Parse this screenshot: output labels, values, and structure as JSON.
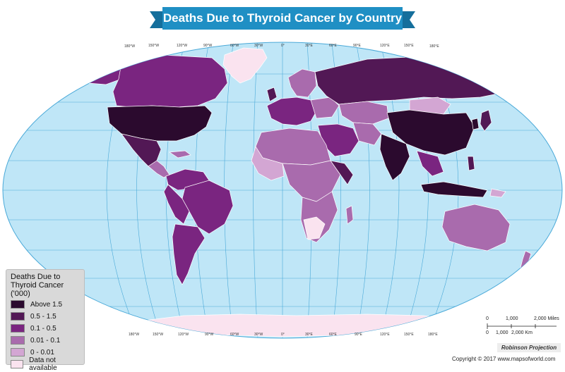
{
  "title": "Deaths Due to Thyroid Cancer by Country",
  "colors": {
    "ocean": "#bfe6f7",
    "graticule": "#4aa9d8",
    "banner": "#1f8fc4",
    "above_1_5": "#2b0a2e",
    "r0_5_1_5": "#521855",
    "r0_1_0_5": "#7a2580",
    "r0_01_0_1": "#a96bad",
    "r0_0_01": "#d3a6d3",
    "not_available": "#fae3ef"
  },
  "legend": {
    "title_line1": "Deaths Due to",
    "title_line2": "Thyroid Cancer ('000)",
    "items": [
      {
        "label": "Above 1.5",
        "color": "#2b0a2e"
      },
      {
        "label": "0.5 - 1.5",
        "color": "#521855"
      },
      {
        "label": "0.1 - 0.5",
        "color": "#7a2580"
      },
      {
        "label": "0.01 - 0.1",
        "color": "#a96bad"
      },
      {
        "label": "0 - 0.01",
        "color": "#d3a6d3"
      },
      {
        "label": "Data not available",
        "color": "#fae3ef"
      }
    ]
  },
  "longitude_labels": [
    "180°W",
    "150°W",
    "120°W",
    "90°W",
    "60°W",
    "30°W",
    "0°",
    "30°E",
    "60°E",
    "90°E",
    "120°E",
    "150°E",
    "180°E"
  ],
  "scale": {
    "miles_ticks": [
      "0",
      "1,000",
      "2,000 Miles"
    ],
    "km_ticks": [
      "0",
      "1,000",
      "2,000 Km"
    ]
  },
  "projection": "Robinson Projection",
  "copyright": "Copyright © 2017 www.mapsofworld.com"
}
